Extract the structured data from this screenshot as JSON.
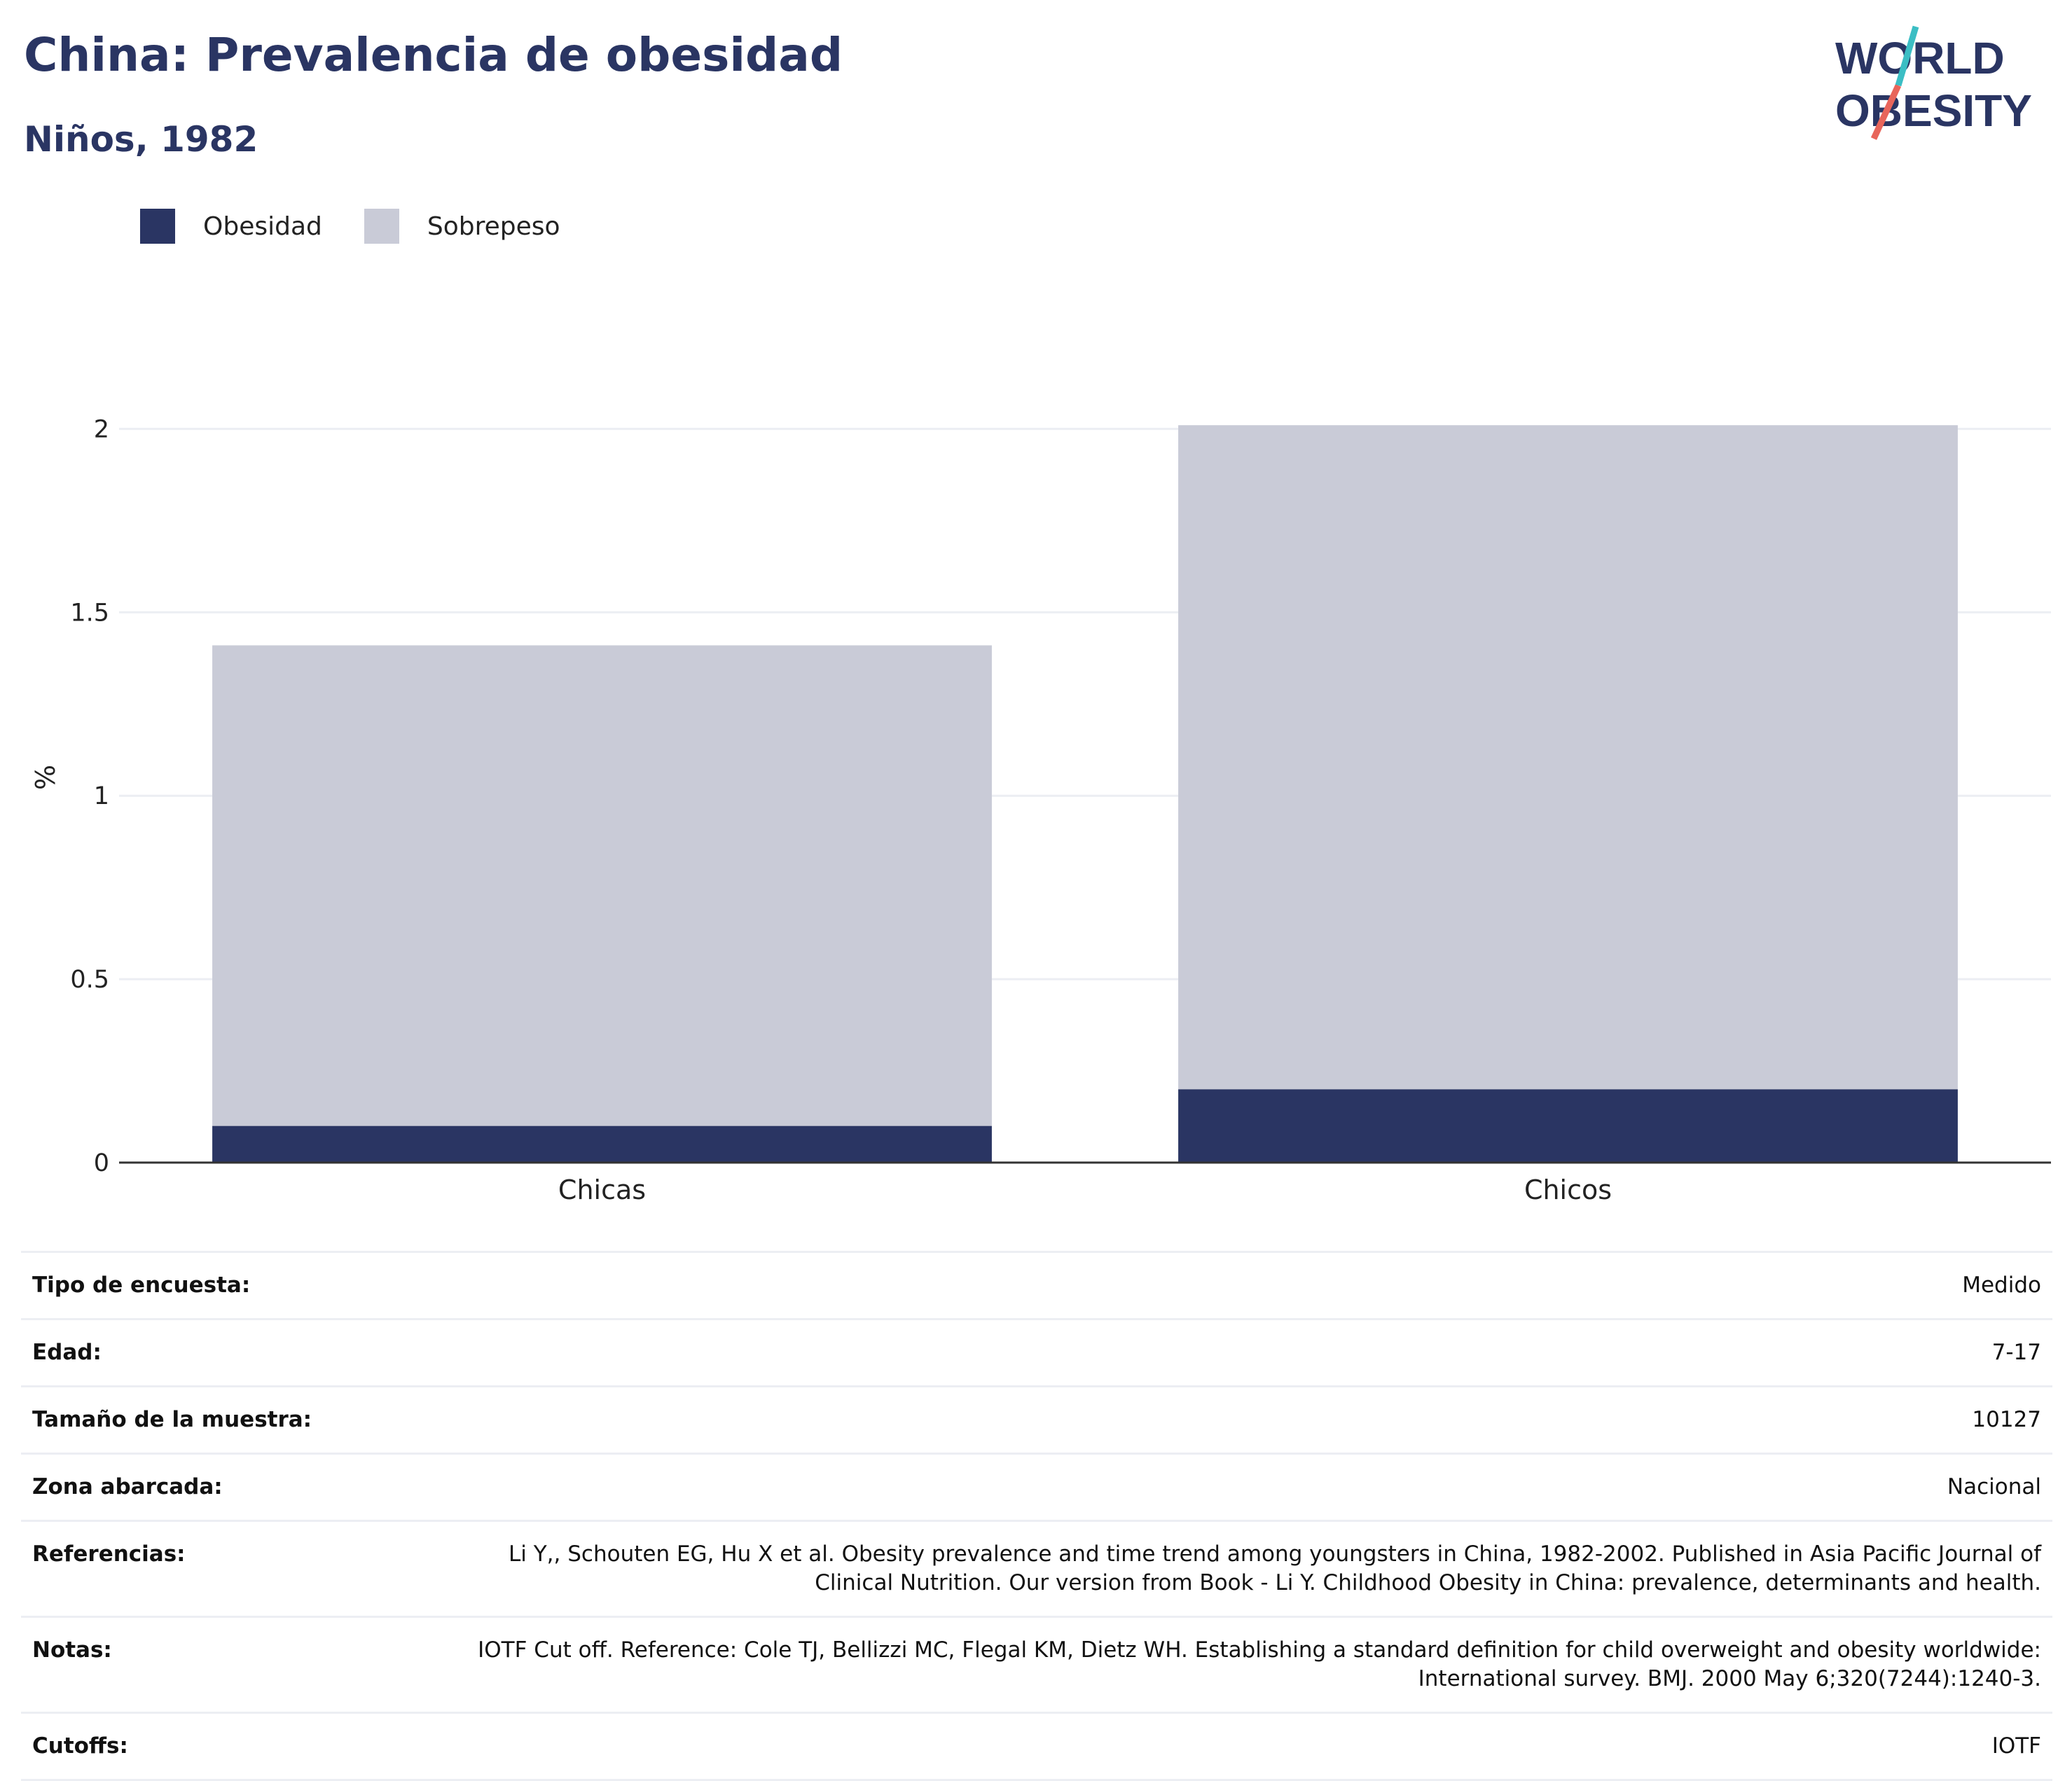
{
  "title": "China: Prevalencia de obesidad",
  "subtitle": "Niños, 1982",
  "logo": {
    "line1": "WORLD",
    "line2": "OBESITY"
  },
  "colors": {
    "obesity": "#2a3563",
    "overweight": "#c9cbd7",
    "title": "#2a3563",
    "logo_teal": "#3bbec4",
    "logo_red": "#e8655a"
  },
  "legend": [
    {
      "label": "Obesidad",
      "color": "#2a3563"
    },
    {
      "label": "Sobrepeso",
      "color": "#c9cbd7"
    }
  ],
  "chart_data": {
    "type": "bar",
    "stacked": true,
    "categories": [
      "Chicas",
      "Chicos"
    ],
    "series": [
      {
        "name": "Obesidad",
        "values": [
          0.1,
          0.2
        ]
      },
      {
        "name": "Sobrepeso",
        "values": [
          1.31,
          1.81
        ]
      }
    ],
    "ylabel": "%",
    "ylim": [
      0,
      2.1
    ],
    "yticks": [
      "0",
      "0.5",
      "1",
      "1.5",
      "2"
    ],
    "grid": true,
    "legend_position": "top-left"
  },
  "info_rows": [
    {
      "label": "Tipo de encuesta:",
      "value": "Medido"
    },
    {
      "label": "Edad:",
      "value": "7-17"
    },
    {
      "label": "Tamaño de la muestra:",
      "value": "10127"
    },
    {
      "label": "Zona abarcada:",
      "value": "Nacional"
    },
    {
      "label": "Referencias:",
      "value": "Li Y,, Schouten EG, Hu X et al. Obesity prevalence and time trend among youngsters in China, 1982-2002. Published in Asia Pacific Journal of Clinical Nutrition. Our version from Book - Li Y. Childhood Obesity in China: prevalence, determinants and health."
    },
    {
      "label": "Notas:",
      "value": "IOTF Cut off. Reference: Cole TJ, Bellizzi MC, Flegal KM, Dietz WH. Establishing a standard definition for child overweight and obesity worldwide: International survey. BMJ. 2000 May 6;320(7244):1240-3."
    },
    {
      "label": "Cutoffs:",
      "value": "IOTF"
    }
  ]
}
